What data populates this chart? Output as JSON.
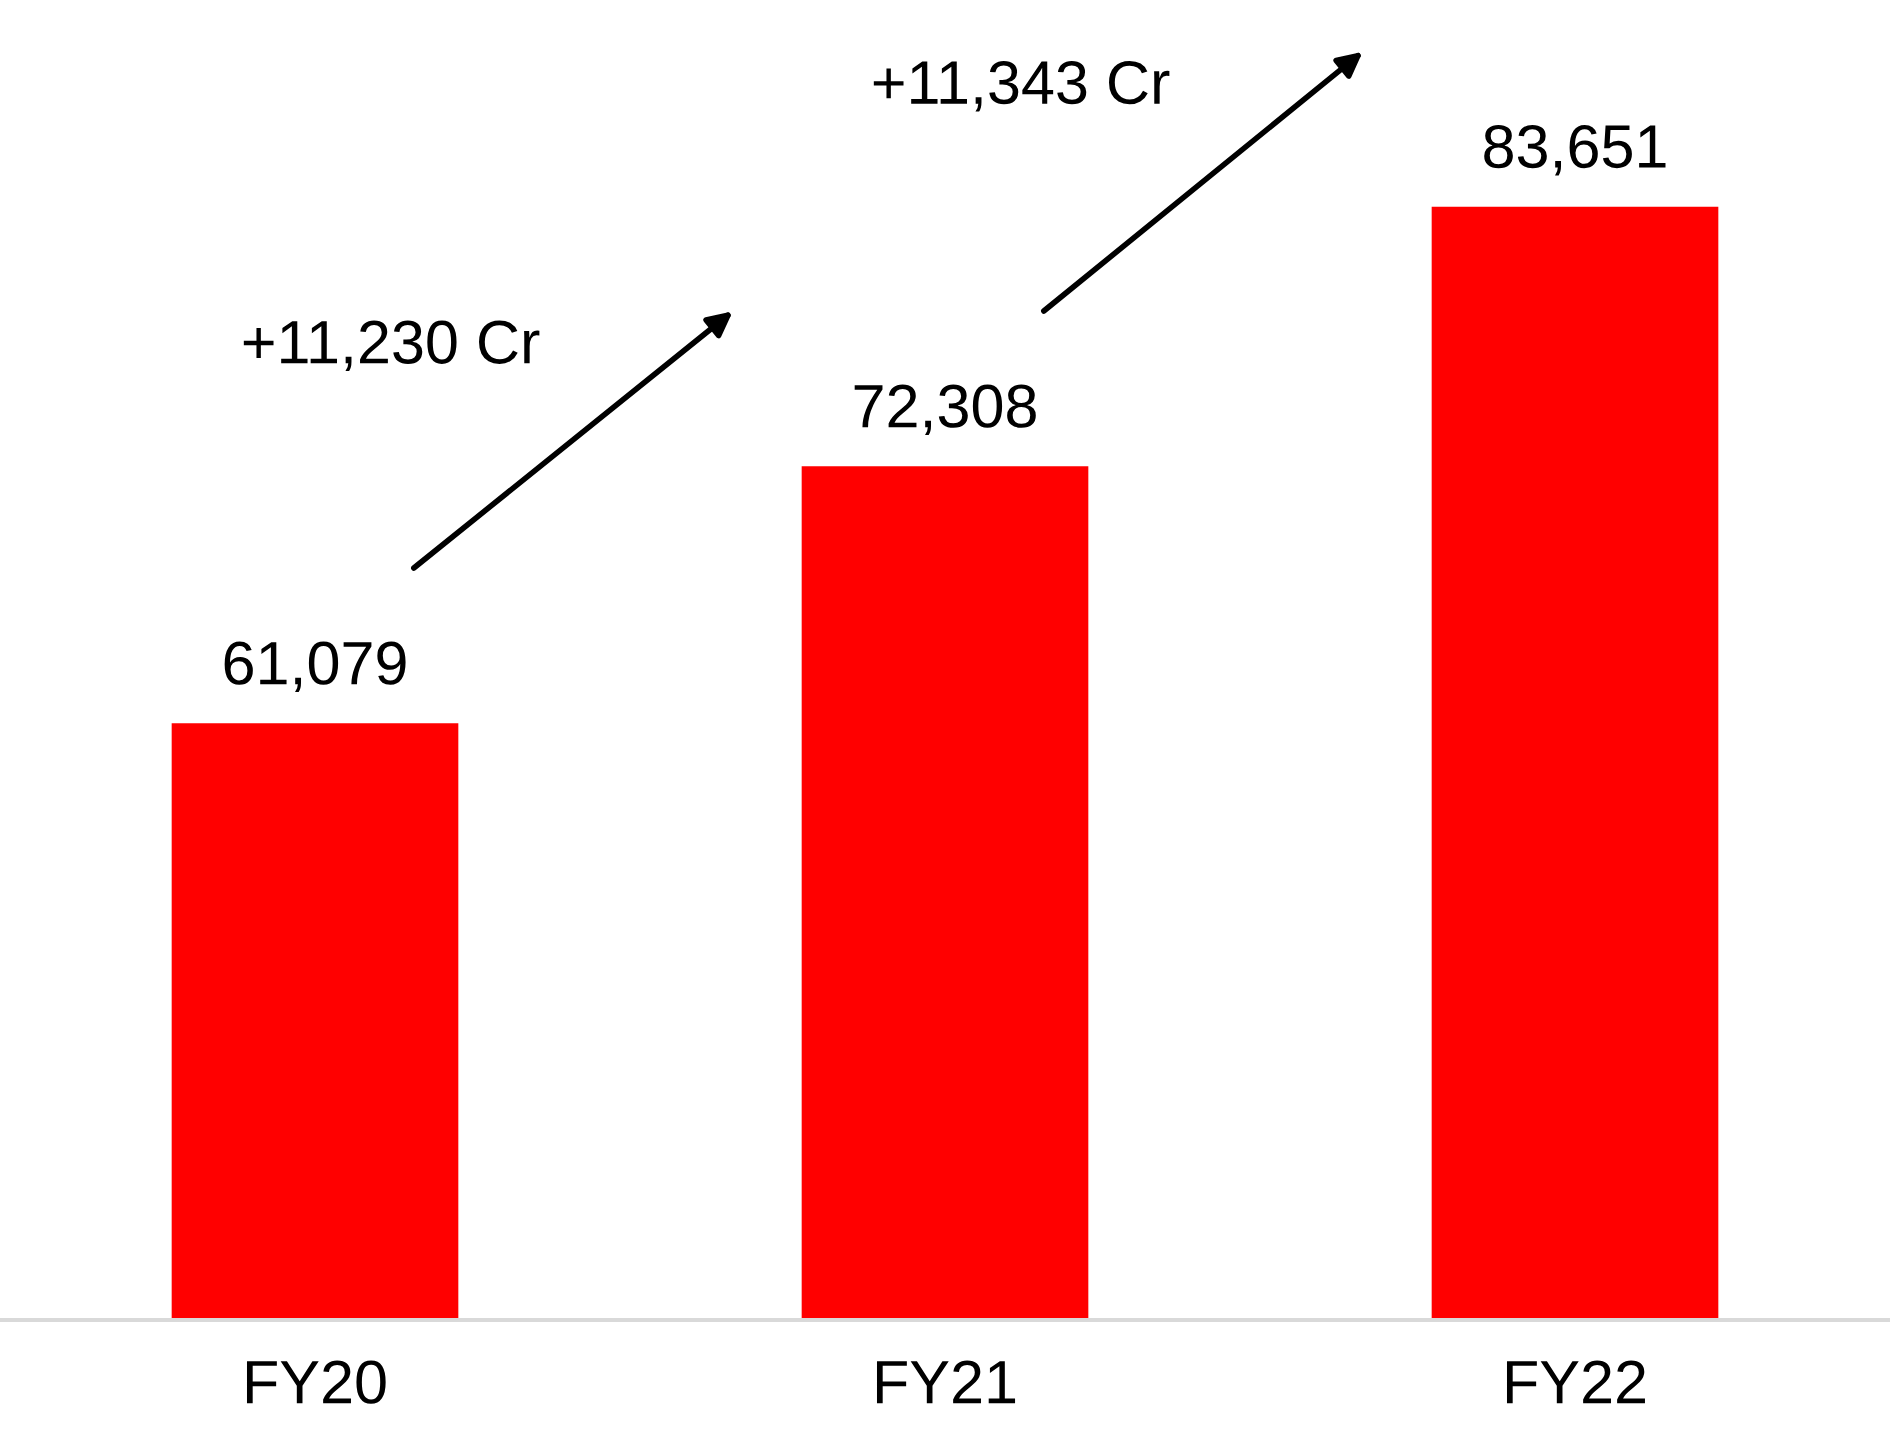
{
  "chart_data": {
    "type": "bar",
    "categories": [
      "FY20",
      "FY21",
      "FY22"
    ],
    "values": [
      61079,
      72308,
      83651
    ],
    "color": "#ff0000",
    "data_labels": true,
    "value_labels": [
      "61,079",
      "72,308",
      "83,651"
    ],
    "grid": false,
    "annotations": [
      "+11,230 Cr",
      "+11,343 Cr"
    ]
  }
}
